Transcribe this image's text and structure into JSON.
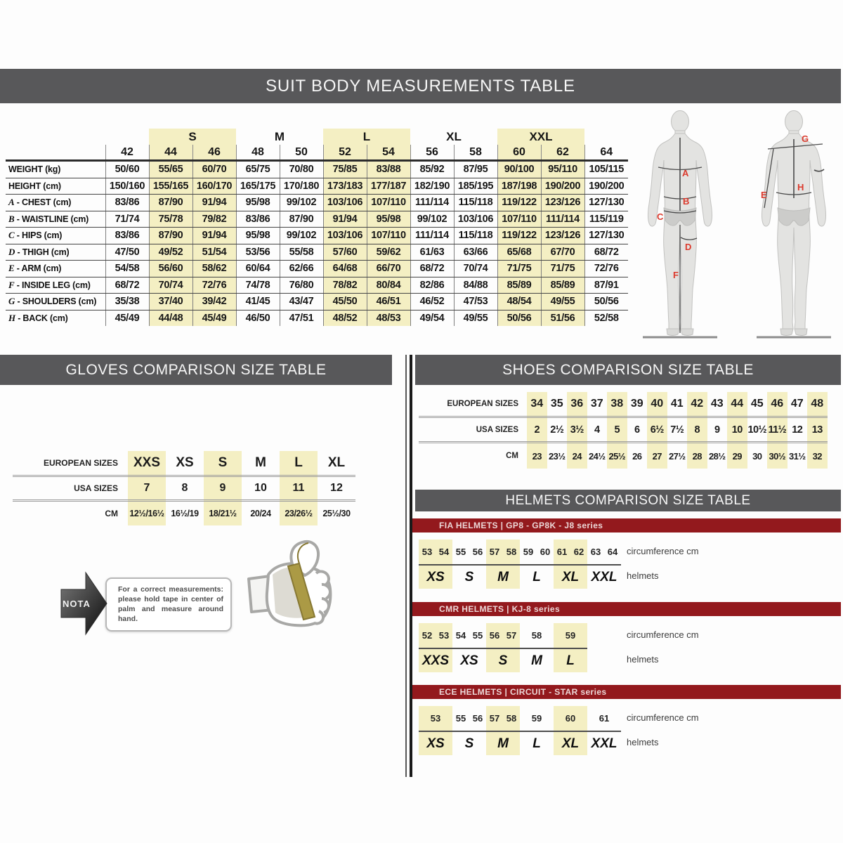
{
  "colors": {
    "header_bar_grey": "#58585A",
    "highlight_yellow": "#F4EFC3",
    "series_bar_red": "#93191D",
    "figure_label_red": "#DB3A2D"
  },
  "suit": {
    "title": "SUIT BODY MEASUREMENTS TABLE",
    "size_groups": [
      {
        "label": "",
        "sizes": [
          "42"
        ],
        "highlight": false
      },
      {
        "label": "S",
        "sizes": [
          "44",
          "46"
        ],
        "highlight": true
      },
      {
        "label": "M",
        "sizes": [
          "48",
          "50"
        ],
        "highlight": false
      },
      {
        "label": "L",
        "sizes": [
          "52",
          "54"
        ],
        "highlight": true
      },
      {
        "label": "XL",
        "sizes": [
          "56",
          "58"
        ],
        "highlight": false
      },
      {
        "label": "XXL",
        "sizes": [
          "60",
          "62"
        ],
        "highlight": true
      },
      {
        "label": "",
        "sizes": [
          "64"
        ],
        "highlight": false
      }
    ],
    "rows": [
      {
        "prefix": "",
        "label": "WEIGHT (kg)",
        "values": [
          "50/60",
          "55/65",
          "60/70",
          "65/75",
          "70/80",
          "75/85",
          "83/88",
          "85/92",
          "87/95",
          "90/100",
          "95/110",
          "105/115"
        ]
      },
      {
        "prefix": "",
        "label": "HEIGHT (cm)",
        "values": [
          "150/160",
          "155/165",
          "160/170",
          "165/175",
          "170/180",
          "173/183",
          "177/187",
          "182/190",
          "185/195",
          "187/198",
          "190/200",
          "190/200"
        ]
      },
      {
        "prefix": "A",
        "label": "CHEST (cm)",
        "values": [
          "83/86",
          "87/90",
          "91/94",
          "95/98",
          "99/102",
          "103/106",
          "107/110",
          "111/114",
          "115/118",
          "119/122",
          "123/126",
          "127/130"
        ]
      },
      {
        "prefix": "B",
        "label": "WAISTLINE (cm)",
        "values": [
          "71/74",
          "75/78",
          "79/82",
          "83/86",
          "87/90",
          "91/94",
          "95/98",
          "99/102",
          "103/106",
          "107/110",
          "111/114",
          "115/119"
        ]
      },
      {
        "prefix": "C",
        "label": "HIPS (cm)",
        "values": [
          "83/86",
          "87/90",
          "91/94",
          "95/98",
          "99/102",
          "103/106",
          "107/110",
          "111/114",
          "115/118",
          "119/122",
          "123/126",
          "127/130"
        ]
      },
      {
        "prefix": "D",
        "label": "THIGH (cm)",
        "values": [
          "47/50",
          "49/52",
          "51/54",
          "53/56",
          "55/58",
          "57/60",
          "59/62",
          "61/63",
          "63/66",
          "65/68",
          "67/70",
          "68/72"
        ]
      },
      {
        "prefix": "E",
        "label": "ARM (cm)",
        "values": [
          "54/58",
          "56/60",
          "58/62",
          "60/64",
          "62/66",
          "64/68",
          "66/70",
          "68/72",
          "70/74",
          "71/75",
          "71/75",
          "72/76"
        ]
      },
      {
        "prefix": "F",
        "label": "INSIDE LEG (cm)",
        "values": [
          "68/72",
          "70/74",
          "72/76",
          "74/78",
          "76/80",
          "78/82",
          "80/84",
          "82/86",
          "84/88",
          "85/89",
          "85/89",
          "87/91"
        ]
      },
      {
        "prefix": "G",
        "label": "SHOULDERS (cm)",
        "values": [
          "35/38",
          "37/40",
          "39/42",
          "41/45",
          "43/47",
          "45/50",
          "46/51",
          "46/52",
          "47/53",
          "48/54",
          "49/55",
          "50/56"
        ]
      },
      {
        "prefix": "H",
        "label": "BACK (cm)",
        "values": [
          "45/49",
          "44/48",
          "45/49",
          "46/50",
          "47/51",
          "48/52",
          "48/53",
          "49/54",
          "49/55",
          "50/56",
          "51/56",
          "52/58"
        ]
      }
    ],
    "figure_labels": [
      "A",
      "B",
      "C",
      "D",
      "E",
      "F",
      "G",
      "H"
    ]
  },
  "gloves": {
    "title": "GLOVES COMPARISON SIZE TABLE",
    "row_labels": [
      "EUROPEAN SIZES",
      "USA SIZES",
      "CM"
    ],
    "columns": [
      {
        "eu": "XXS",
        "usa": "7",
        "cm": "12½/16½",
        "highlight": true
      },
      {
        "eu": "XS",
        "usa": "8",
        "cm": "16½/19",
        "highlight": false
      },
      {
        "eu": "S",
        "usa": "9",
        "cm": "18/21½",
        "highlight": true
      },
      {
        "eu": "M",
        "usa": "10",
        "cm": "20/24",
        "highlight": false
      },
      {
        "eu": "L",
        "usa": "11",
        "cm": "23/26½",
        "highlight": true
      },
      {
        "eu": "XL",
        "usa": "12",
        "cm": "25½/30",
        "highlight": false
      }
    ],
    "note": {
      "tag": "NOTA",
      "text": "For a correct measurements: please hold tape in center of palm and measure around hand."
    }
  },
  "shoes": {
    "title": "SHOES COMPARISON SIZE TABLE",
    "row_labels": [
      "EUROPEAN SIZES",
      "USA SIZES",
      "CM"
    ],
    "columns": [
      {
        "eu": "34",
        "usa": "2",
        "cm": "23",
        "highlight": true
      },
      {
        "eu": "35",
        "usa": "2½",
        "cm": "23½",
        "highlight": false
      },
      {
        "eu": "36",
        "usa": "3½",
        "cm": "24",
        "highlight": true
      },
      {
        "eu": "37",
        "usa": "4",
        "cm": "24½",
        "highlight": false
      },
      {
        "eu": "38",
        "usa": "5",
        "cm": "25½",
        "highlight": true
      },
      {
        "eu": "39",
        "usa": "6",
        "cm": "26",
        "highlight": false
      },
      {
        "eu": "40",
        "usa": "6½",
        "cm": "27",
        "highlight": true
      },
      {
        "eu": "41",
        "usa": "7½",
        "cm": "27½",
        "highlight": false
      },
      {
        "eu": "42",
        "usa": "8",
        "cm": "28",
        "highlight": true
      },
      {
        "eu": "43",
        "usa": "9",
        "cm": "28½",
        "highlight": false
      },
      {
        "eu": "44",
        "usa": "10",
        "cm": "29",
        "highlight": true
      },
      {
        "eu": "45",
        "usa": "10½",
        "cm": "30",
        "highlight": false
      },
      {
        "eu": "46",
        "usa": "11½",
        "cm": "30½",
        "highlight": true
      },
      {
        "eu": "47",
        "usa": "12",
        "cm": "31½",
        "highlight": false
      },
      {
        "eu": "48",
        "usa": "13",
        "cm": "32",
        "highlight": true
      }
    ]
  },
  "helmets": {
    "title": "HELMETS COMPARISON SIZE TABLE",
    "circumference_label": "circumference cm",
    "helmets_label": "helmets",
    "series": [
      {
        "name": "FIA HELMETS | GP8 - GP8K - J8 series",
        "groups": [
          {
            "size": "XS",
            "numbers": [
              "53",
              "54"
            ],
            "highlight": true
          },
          {
            "size": "S",
            "numbers": [
              "55",
              "56"
            ],
            "highlight": false
          },
          {
            "size": "M",
            "numbers": [
              "57",
              "58"
            ],
            "highlight": true
          },
          {
            "size": "L",
            "numbers": [
              "59",
              "60"
            ],
            "highlight": false
          },
          {
            "size": "XL",
            "numbers": [
              "61",
              "62"
            ],
            "highlight": true
          },
          {
            "size": "XXL",
            "numbers": [
              "63",
              "64"
            ],
            "highlight": false
          }
        ]
      },
      {
        "name": "CMR HELMETS | KJ-8 series",
        "groups": [
          {
            "size": "XXS",
            "numbers": [
              "52",
              "53"
            ],
            "highlight": true
          },
          {
            "size": "XS",
            "numbers": [
              "54",
              "55"
            ],
            "highlight": false
          },
          {
            "size": "S",
            "numbers": [
              "56",
              "57"
            ],
            "highlight": true
          },
          {
            "size": "M",
            "numbers": [
              "58"
            ],
            "highlight": false
          },
          {
            "size": "L",
            "numbers": [
              "59"
            ],
            "highlight": true
          }
        ]
      },
      {
        "name": "ECE HELMETS | CIRCUIT - STAR series",
        "groups": [
          {
            "size": "XS",
            "numbers": [
              "53"
            ],
            "highlight": true
          },
          {
            "size": "S",
            "numbers": [
              "55",
              "56"
            ],
            "highlight": false
          },
          {
            "size": "M",
            "numbers": [
              "57",
              "58"
            ],
            "highlight": true
          },
          {
            "size": "L",
            "numbers": [
              "59"
            ],
            "highlight": false
          },
          {
            "size": "XL",
            "numbers": [
              "60"
            ],
            "highlight": true
          },
          {
            "size": "XXL",
            "numbers": [
              "61"
            ],
            "highlight": false
          }
        ]
      }
    ]
  }
}
